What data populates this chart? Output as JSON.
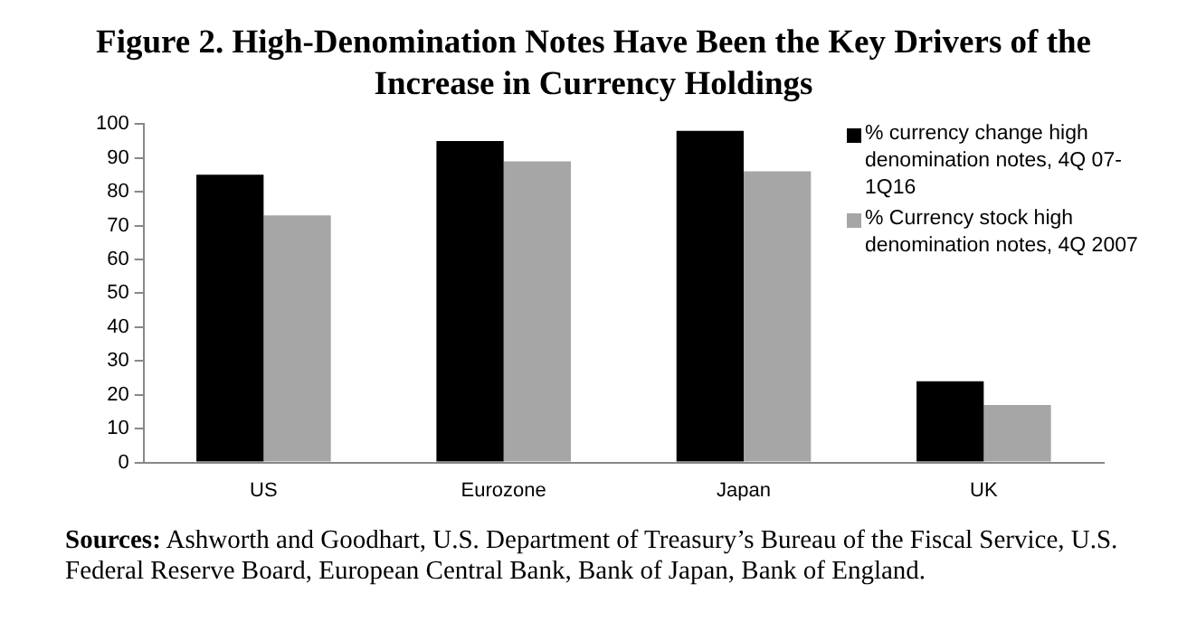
{
  "chart_data": {
    "type": "bar",
    "title": "Figure 2.  High-Denomination Notes Have Been the Key Drivers of the Increase in Currency Holdings",
    "categories": [
      "US",
      "Eurozone",
      "Japan",
      "UK"
    ],
    "series": [
      {
        "name": "% currency change high denomination notes, 4Q 07-1Q16",
        "color": "#000000",
        "values": [
          85,
          95,
          98,
          24
        ]
      },
      {
        "name": "% Currency stock high denomination notes, 4Q 2007",
        "color": "#a6a6a6",
        "values": [
          73,
          89,
          86,
          17
        ]
      }
    ],
    "ylim": [
      0,
      100
    ],
    "yticks": [
      0,
      10,
      20,
      30,
      40,
      50,
      60,
      70,
      80,
      90,
      100
    ],
    "grid": false,
    "legend": "top right",
    "annotations": [
      "Sources: Ashworth and Goodhart, U.S. Department of Treasury’s Bureau of the Fiscal Service, U.S. Federal Reserve Board, European Central Bank, Bank of Japan, Bank of England."
    ]
  }
}
